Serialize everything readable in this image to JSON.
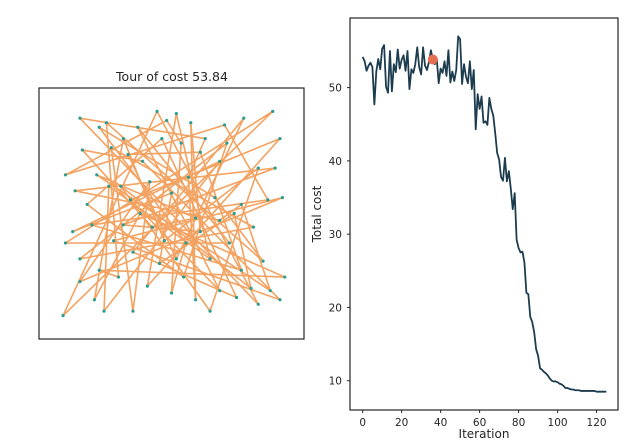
{
  "chart_data": [
    {
      "type": "line",
      "title": "Tour of cost 53.84",
      "xlim": [
        0,
        1
      ],
      "ylim": [
        0,
        1
      ],
      "axis_ticks": false,
      "grid": false,
      "colors": {
        "route": "#f4a261",
        "city": "#2a9d8f"
      },
      "points": [
        [
          0.12,
          0.92
        ],
        [
          0.23,
          0.9
        ],
        [
          0.3,
          0.83
        ],
        [
          0.36,
          0.88
        ],
        [
          0.44,
          0.95
        ],
        [
          0.52,
          0.94
        ],
        [
          0.58,
          0.9
        ],
        [
          0.64,
          0.83
        ],
        [
          0.73,
          0.81
        ],
        [
          0.8,
          0.92
        ],
        [
          0.92,
          0.95
        ],
        [
          0.95,
          0.83
        ],
        [
          0.96,
          0.57
        ],
        [
          0.9,
          0.56
        ],
        [
          0.86,
          0.7
        ],
        [
          0.79,
          0.54
        ],
        [
          0.76,
          0.5
        ],
        [
          0.7,
          0.73
        ],
        [
          0.68,
          0.57
        ],
        [
          0.62,
          0.77
        ],
        [
          0.57,
          0.66
        ],
        [
          0.54,
          0.81
        ],
        [
          0.5,
          0.59
        ],
        [
          0.46,
          0.83
        ],
        [
          0.41,
          0.64
        ],
        [
          0.38,
          0.73
        ],
        [
          0.33,
          0.56
        ],
        [
          0.29,
          0.62
        ],
        [
          0.25,
          0.79
        ],
        [
          0.24,
          0.62
        ],
        [
          0.19,
          0.67
        ],
        [
          0.15,
          0.54
        ],
        [
          0.1,
          0.6
        ],
        [
          0.06,
          0.67
        ],
        [
          0.06,
          0.37
        ],
        [
          0.12,
          0.3
        ],
        [
          0.17,
          0.45
        ],
        [
          0.2,
          0.25
        ],
        [
          0.26,
          0.38
        ],
        [
          0.3,
          0.45
        ],
        [
          0.34,
          0.33
        ],
        [
          0.37,
          0.5
        ],
        [
          0.42,
          0.44
        ],
        [
          0.47,
          0.38
        ],
        [
          0.52,
          0.3
        ],
        [
          0.56,
          0.37
        ],
        [
          0.62,
          0.42
        ],
        [
          0.66,
          0.3
        ],
        [
          0.7,
          0.47
        ],
        [
          0.74,
          0.37
        ],
        [
          0.79,
          0.25
        ],
        [
          0.83,
          0.17
        ],
        [
          0.88,
          0.29
        ],
        [
          0.91,
          0.16
        ],
        [
          0.97,
          0.22
        ],
        [
          0.95,
          0.12
        ],
        [
          0.86,
          0.1
        ],
        [
          0.77,
          0.13
        ],
        [
          0.7,
          0.16
        ],
        [
          0.66,
          0.07
        ],
        [
          0.6,
          0.12
        ],
        [
          0.55,
          0.22
        ],
        [
          0.5,
          0.15
        ],
        [
          0.45,
          0.28
        ],
        [
          0.4,
          0.18
        ],
        [
          0.34,
          0.07
        ],
        [
          0.28,
          0.22
        ],
        [
          0.22,
          0.07
        ],
        [
          0.18,
          0.12
        ],
        [
          0.12,
          0.2
        ],
        [
          0.05,
          0.05
        ],
        [
          0.09,
          0.42
        ],
        [
          0.13,
          0.78
        ],
        [
          0.2,
          0.88
        ],
        [
          0.32,
          0.76
        ],
        [
          0.48,
          0.91
        ],
        [
          0.6,
          0.48
        ],
        [
          0.72,
          0.89
        ],
        [
          0.84,
          0.44
        ],
        [
          0.93,
          0.7
        ]
      ],
      "tour": [
        0,
        56,
        4,
        70,
        10,
        34,
        49,
        3,
        58,
        26,
        11,
        64,
        5,
        47,
        29,
        67,
        17,
        71,
        22,
        63,
        16,
        51,
        27,
        59,
        14,
        43,
        2,
        68,
        41,
        54,
        37,
        66,
        1,
        52,
        18,
        73,
        45,
        62,
        21,
        75,
        33,
        77,
        13,
        36,
        50,
        19,
        74,
        44,
        9,
        40,
        57,
        23,
        31,
        61,
        8,
        35,
        78,
        28,
        65,
        24,
        69,
        12,
        38,
        55,
        25,
        72,
        42,
        76,
        30,
        53,
        15,
        48,
        32,
        79,
        39,
        46,
        6,
        60,
        20,
        7,
        0
      ]
    },
    {
      "type": "line",
      "title": "",
      "xlabel": "Iteration",
      "ylabel": "Total cost",
      "xlim": [
        -6.5,
        131
      ],
      "ylim": [
        6.0,
        59.5
      ],
      "xticks": [
        0,
        20,
        40,
        60,
        80,
        100,
        120
      ],
      "yticks": [
        10,
        20,
        30,
        40,
        50
      ],
      "grid": false,
      "colors": {
        "line": "#1d3d4f",
        "marker": "#e76f51"
      },
      "marker": {
        "x": 36,
        "y": 53.84
      },
      "series": [
        {
          "x": [
            0,
            1,
            2,
            3,
            4,
            5,
            6,
            7,
            8,
            9,
            10,
            11,
            12,
            13,
            14,
            15,
            16,
            17,
            18,
            19,
            20,
            21,
            22,
            23,
            24,
            25,
            26,
            27,
            28,
            29,
            30,
            31,
            32,
            33,
            34,
            35,
            36,
            37,
            38,
            39,
            40,
            41,
            42,
            43,
            44,
            45,
            46,
            47,
            48,
            49,
            50,
            51,
            52,
            53,
            54,
            55,
            56,
            57,
            58,
            59,
            60,
            61,
            62,
            63,
            64,
            65,
            66,
            67,
            68,
            69,
            70,
            71,
            72,
            73,
            74,
            75,
            76,
            77,
            78,
            79,
            80,
            81,
            82,
            83,
            84,
            85,
            86,
            87,
            88,
            89,
            90,
            91,
            92,
            93,
            94,
            95,
            96,
            97,
            98,
            99,
            100,
            101,
            102,
            103,
            104,
            105,
            106,
            107,
            108,
            109,
            110,
            111,
            112,
            113,
            114,
            115,
            116,
            117,
            118,
            119,
            120,
            121,
            122,
            123,
            124,
            125
          ],
          "y": [
            54.2,
            53.6,
            52.3,
            53.0,
            53.4,
            52.8,
            47.7,
            52.2,
            53.9,
            52.5,
            55.3,
            55.8,
            50.1,
            49.3,
            55.0,
            49.5,
            53.2,
            52.1,
            55.2,
            52.6,
            53.8,
            54.4,
            52.3,
            55.0,
            49.8,
            52.5,
            52.0,
            53.2,
            55.5,
            52.8,
            51.8,
            55.5,
            53.0,
            52.4,
            53.5,
            55.1,
            53.84,
            53.2,
            54.0,
            50.6,
            52.6,
            52.0,
            53.6,
            51.6,
            55.1,
            50.7,
            52.2,
            50.9,
            52.4,
            57.0,
            56.6,
            50.5,
            53.2,
            51.5,
            50.6,
            53.6,
            49.8,
            52.4,
            44.3,
            49.1,
            47.1,
            48.8,
            45.2,
            45.4,
            44.9,
            48.6,
            47.1,
            46.2,
            43.8,
            41.1,
            40.2,
            37.8,
            37.3,
            40.4,
            37.2,
            38.6,
            36.2,
            33.4,
            35.6,
            29.2,
            28.1,
            27.5,
            27.6,
            26.1,
            22.0,
            21.8,
            18.7,
            18.0,
            16.6,
            14.3,
            13.4,
            11.7,
            11.5,
            11.2,
            11.0,
            10.7,
            10.3,
            10.0,
            9.9,
            9.9,
            9.8,
            9.6,
            9.5,
            9.3,
            9.0,
            9.0,
            8.9,
            8.8,
            8.8,
            8.7,
            8.7,
            8.7,
            8.6,
            8.6,
            8.6,
            8.6,
            8.6,
            8.6,
            8.6,
            8.6,
            8.5,
            8.5,
            8.5,
            8.5,
            8.5,
            8.5
          ]
        }
      ]
    }
  ]
}
